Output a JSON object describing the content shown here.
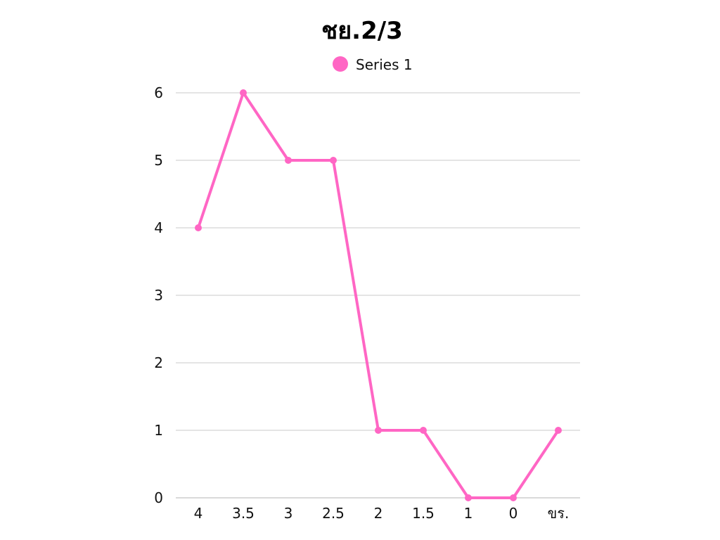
{
  "chart_data": {
    "type": "line",
    "title": "ชย.2/3",
    "xlabel": "",
    "ylabel": "",
    "categories": [
      "4",
      "3.5",
      "3",
      "2.5",
      "2",
      "1.5",
      "1",
      "0",
      "ขร."
    ],
    "series": [
      {
        "name": "Series 1",
        "values": [
          4,
          6,
          5,
          5,
          1,
          1,
          0,
          0,
          1
        ],
        "color": "#ff66c4"
      }
    ],
    "ylim": [
      0,
      6
    ],
    "yticks": [
      0,
      1,
      2,
      3,
      4,
      5,
      6
    ],
    "grid": true,
    "legend_position": "top-center",
    "colors": {
      "gridline": "#c8c8c8",
      "axis": "#b5b5b5",
      "text": "#111111"
    }
  }
}
